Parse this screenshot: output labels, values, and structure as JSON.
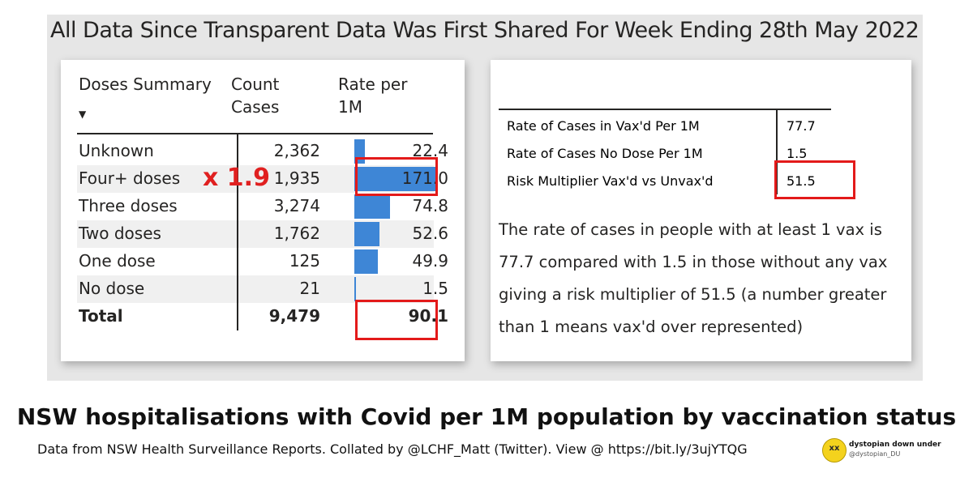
{
  "title": "All Data Since Transparent Data Was First Shared For Week Ending 28th May 2022",
  "left_table": {
    "headers": [
      "Doses Summary",
      "Count Cases",
      "Rate per 1M"
    ],
    "header_lines": {
      "count_1": "Count",
      "count_2": "Cases",
      "rate_1": "Rate per",
      "rate_2": "1M"
    },
    "rows": [
      {
        "label": "Unknown",
        "count": "2,362",
        "rate": "22.4"
      },
      {
        "label": "Four+ doses",
        "count": "1,935",
        "rate": "171.0"
      },
      {
        "label": "Three doses",
        "count": "3,274",
        "rate": "74.8"
      },
      {
        "label": "Two doses",
        "count": "1,762",
        "rate": "52.6"
      },
      {
        "label": "One dose",
        "count": "125",
        "rate": "49.9"
      },
      {
        "label": "No dose",
        "count": "21",
        "rate": "1.5"
      }
    ],
    "total": {
      "label": "Total",
      "count": "9,479",
      "rate": "90.1"
    },
    "rate_values": [
      22.4,
      171.0,
      74.8,
      52.6,
      49.9,
      1.5
    ],
    "multiplier_annotation": "x 1.9"
  },
  "right_table": {
    "rows": [
      {
        "label": "Rate of Cases in Vax'd Per 1M",
        "value": "77.7"
      },
      {
        "label": "Rate of Cases No Dose Per 1M",
        "value": "1.5"
      },
      {
        "label": "Risk Multiplier Vax'd vs Unvax'd",
        "value": "51.5"
      }
    ],
    "paragraph": "The rate of cases in people with at least 1 vax is 77.7 compared with 1.5 in those without any vax giving a risk multiplier of 51.5 (a number greater than 1 means vax'd over represented)"
  },
  "caption": "NSW hospitalisations with Covid per 1M population by vaccination status",
  "footer": "Data from NSW Health Surveillance Reports. Collated by @LCHF_Matt (Twitter). View @ https://bit.ly/3ujYTQG",
  "logo": {
    "name": "dystopian down under",
    "handle": "@dystopian_DU",
    "face": "xx"
  },
  "colors": {
    "bar": "#3e86d6",
    "highlight": "#e31a1a",
    "annotation": "#e02020",
    "logo": "#f4d21d"
  }
}
